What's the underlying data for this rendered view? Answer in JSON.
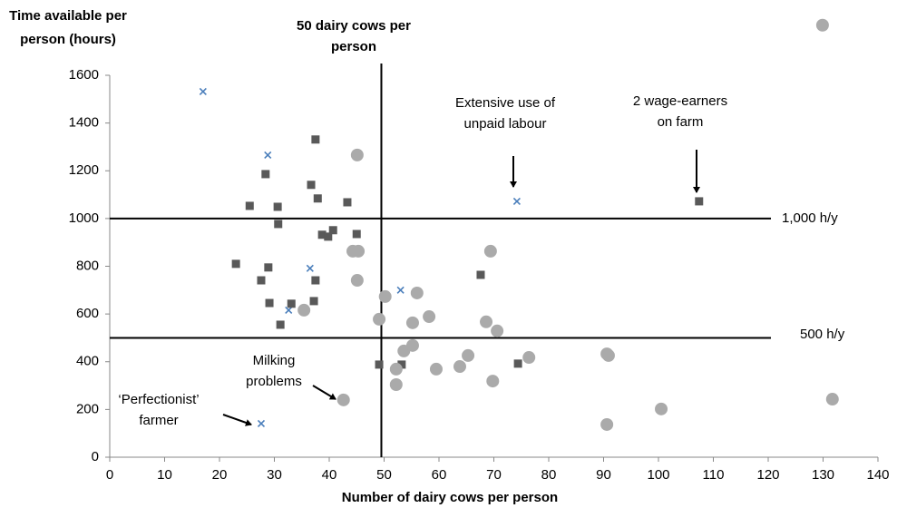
{
  "chart_data": {
    "type": "scatter",
    "y_label": [
      "Time available per",
      "person (hours)"
    ],
    "x_label": "Number of dairy cows per person",
    "xlim": [
      0,
      140
    ],
    "xticks": [
      0,
      10,
      20,
      30,
      40,
      50,
      60,
      70,
      80,
      90,
      100,
      110,
      120,
      130,
      140
    ],
    "ylim": [
      0,
      1850
    ],
    "yticks": [
      0,
      200,
      400,
      600,
      800,
      1000,
      1200,
      1400,
      1600
    ],
    "series": [
      {
        "marker": "x",
        "color": "#4a7ebb",
        "x": [
          17,
          28.8,
          32.6,
          36.5,
          53,
          74.2,
          27.6
        ],
        "values": [
          1532,
          1266,
          616,
          791,
          700,
          1072,
          141
        ]
      },
      {
        "marker": "square",
        "color": "#595959",
        "x": [
          25.5,
          30.6,
          28.4,
          37.5,
          36.7,
          37.9,
          43.3,
          30.7,
          40.7,
          38.7,
          39.8,
          45,
          23,
          28.9,
          27.6,
          37.5,
          29.1,
          33.1,
          37.2,
          31.1,
          67.6,
          49.1,
          53.2,
          74.4,
          107.4
        ],
        "values": [
          1053,
          1049,
          1186,
          1331,
          1141,
          1084,
          1068,
          977,
          951,
          932,
          924,
          935,
          810,
          795,
          741,
          741,
          646,
          643,
          654,
          555,
          764,
          388,
          388,
          392,
          1072
        ]
      },
      {
        "marker": "circle",
        "color": "#aaaaaa",
        "x": [
          45.1,
          44.3,
          45.3,
          45.1,
          35.4,
          50.2,
          56,
          49.1,
          58.2,
          55.2,
          69.4,
          68.6,
          70.6,
          53.6,
          55.2,
          52.2,
          52.2,
          59.5,
          63.8,
          65.3,
          69.8,
          76.4,
          90.6,
          90.9,
          90.6,
          100.5,
          42.6,
          131.7,
          129.9
        ],
        "values": [
          1266,
          863,
          863,
          741,
          616,
          673,
          688,
          578,
          589,
          563,
          863,
          567,
          529,
          445,
          468,
          369,
          304,
          369,
          380,
          426,
          319,
          418,
          433,
          426,
          137,
          202,
          240,
          243,
          1810
        ]
      }
    ],
    "reference_lines": [
      {
        "axis": "x",
        "value": 49.5,
        "label": [
          "50 dairy cows per",
          "person"
        ]
      },
      {
        "axis": "y",
        "value": 1000,
        "label": [
          "1,000 h/y"
        ]
      },
      {
        "axis": "y",
        "value": 500,
        "label": [
          "500 h/y"
        ]
      }
    ],
    "annotations": [
      [
        "Extensive use of",
        "unpaid labour"
      ],
      [
        "2 wage-earners",
        "on farm"
      ],
      [
        "Milking",
        "problems"
      ],
      [
        "‘Perfectionist’",
        "farmer"
      ]
    ]
  }
}
